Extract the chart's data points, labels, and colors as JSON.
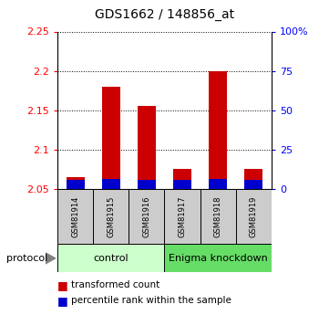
{
  "title": "GDS1662 / 148856_at",
  "samples": [
    "GSM81914",
    "GSM81915",
    "GSM81916",
    "GSM81917",
    "GSM81918",
    "GSM81919"
  ],
  "red_values": [
    2.065,
    2.18,
    2.155,
    2.075,
    2.2,
    2.075
  ],
  "blue_values": [
    2.062,
    2.063,
    2.062,
    2.062,
    2.063,
    2.062
  ],
  "ylim_left": [
    2.05,
    2.25
  ],
  "ylim_right": [
    0,
    100
  ],
  "yticks_left": [
    2.05,
    2.1,
    2.15,
    2.2,
    2.25
  ],
  "ytick_labels_left": [
    "2.05",
    "2.1",
    "2.15",
    "2.2",
    "2.25"
  ],
  "yticks_right": [
    0,
    25,
    50,
    75,
    100
  ],
  "ytick_labels_right": [
    "0",
    "25",
    "50",
    "75",
    "100%"
  ],
  "bar_width": 0.5,
  "red_color": "#cc0000",
  "blue_color": "#0000cc",
  "control_label": "control",
  "knockdown_label": "Enigma knockdown",
  "protocol_label": "protocol",
  "group_bg_control": "#ccffcc",
  "group_bg_knockdown": "#66dd66",
  "sample_bg": "#cccccc",
  "legend_red": "transformed count",
  "legend_blue": "percentile rank within the sample",
  "base_value": 2.05
}
